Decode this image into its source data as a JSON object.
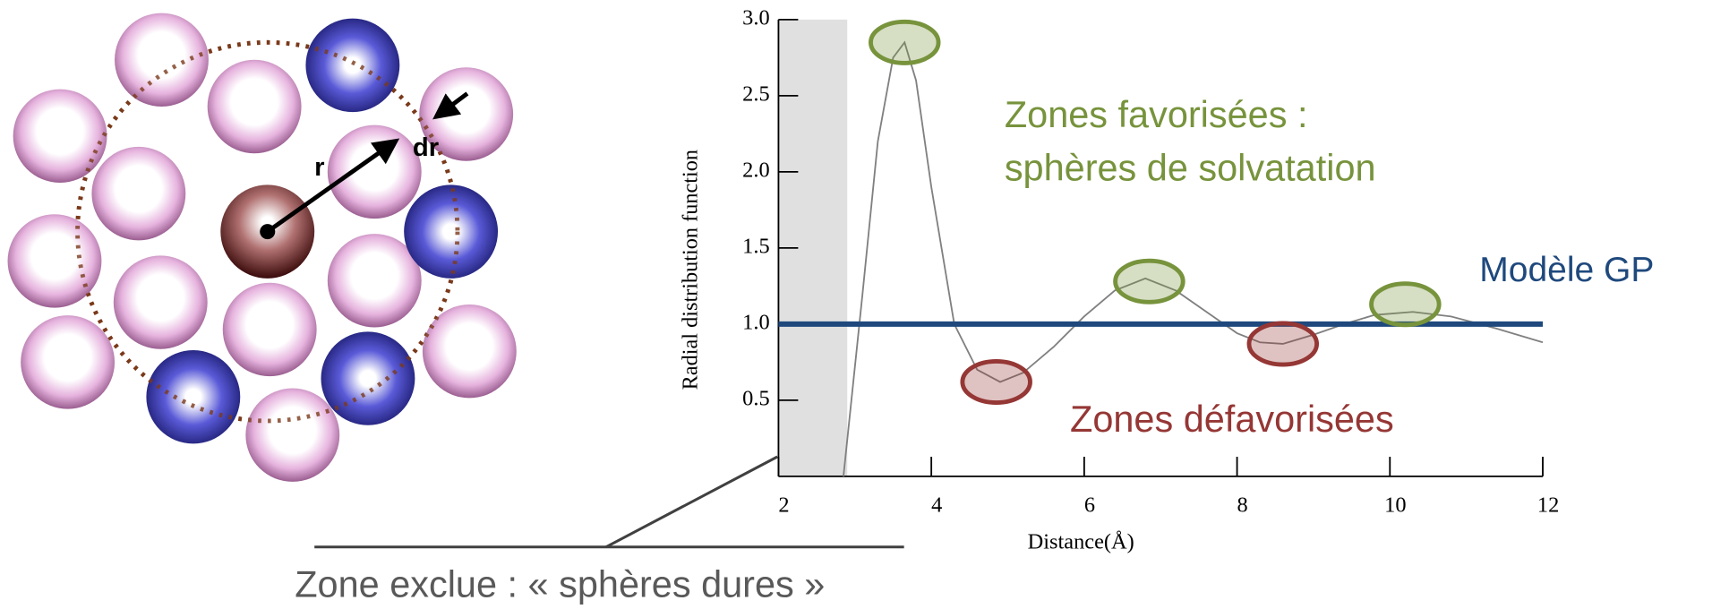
{
  "chart_data": {
    "type": "line",
    "x": [
      2.85,
      3.1,
      3.3,
      3.5,
      3.65,
      3.8,
      4.0,
      4.3,
      4.6,
      4.9,
      5.2,
      5.6,
      6.0,
      6.4,
      6.8,
      7.2,
      7.6,
      8.0,
      8.3,
      8.6,
      9.0,
      9.4,
      9.8,
      10.3,
      10.8,
      11.4,
      12
    ],
    "values": [
      0,
      1.2,
      2.2,
      2.75,
      2.85,
      2.6,
      1.9,
      1.0,
      0.7,
      0.62,
      0.68,
      0.85,
      1.05,
      1.22,
      1.3,
      1.22,
      1.08,
      0.94,
      0.88,
      0.87,
      0.93,
      1.0,
      1.06,
      1.08,
      1.05,
      0.97,
      0.88
    ],
    "color": "#808080",
    "xlabel": "Distance(Å)",
    "ylabel": "Radial distribution function",
    "xlim": [
      2,
      12
    ],
    "ylim": [
      0,
      3
    ],
    "xticks": [
      2,
      4,
      6,
      8,
      10,
      12
    ],
    "yticks": [
      0.5,
      {
        "value": 1,
        "label": "1.0"
      },
      1.5,
      {
        "value": 2,
        "label": "2.0"
      },
      2.5,
      {
        "value": 3,
        "label": "3.0"
      }
    ],
    "reference_line": {
      "label": "Modèle GP",
      "value": 1,
      "color": "#1f497d"
    },
    "excluded_zone": {
      "label": "Zone exclue : « sphères dures »",
      "x": [
        2,
        2.9
      ],
      "color": "#e0e0e0"
    },
    "annotations": [
      {
        "text": [
          "Zones favorisées :",
          "sphères de solvatation"
        ],
        "color": "#77933c",
        "x": [
          3.65,
          6.85,
          10.2
        ],
        "y": [
          2.85,
          1.28,
          1.13
        ]
      },
      {
        "text": [
          "Zones défavorisées"
        ],
        "color": "#953735",
        "x": [
          4.85,
          8.6
        ],
        "y": [
          0.62,
          0.87
        ]
      }
    ]
  },
  "figure_labels": [
    "r",
    "dr"
  ]
}
